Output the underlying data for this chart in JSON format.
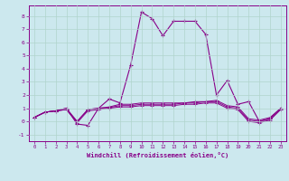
{
  "xlabel": "Windchill (Refroidissement éolien,°C)",
  "background_color": "#cce8ee",
  "grid_color": "#b0d4cc",
  "line_color": "#880088",
  "xlim": [
    -0.5,
    23.5
  ],
  "ylim": [
    -1.5,
    8.8
  ],
  "xticks": [
    0,
    1,
    2,
    3,
    4,
    5,
    6,
    7,
    8,
    9,
    10,
    11,
    12,
    13,
    14,
    15,
    16,
    17,
    18,
    19,
    20,
    21,
    22,
    23
  ],
  "yticks": [
    -1,
    0,
    1,
    2,
    3,
    4,
    5,
    6,
    7,
    8
  ],
  "series": [
    [
      0.3,
      0.7,
      0.8,
      1.0,
      -0.2,
      -0.3,
      1.0,
      1.7,
      1.4,
      4.3,
      8.3,
      7.8,
      6.5,
      7.6,
      7.6,
      7.6,
      6.6,
      2.0,
      3.1,
      1.3,
      1.5,
      0.0,
      0.2,
      1.0
    ],
    [
      0.3,
      0.7,
      0.8,
      1.0,
      0.0,
      0.9,
      1.0,
      1.1,
      1.3,
      1.3,
      1.4,
      1.4,
      1.4,
      1.4,
      1.4,
      1.5,
      1.5,
      1.6,
      1.2,
      1.1,
      0.2,
      0.1,
      0.3,
      1.0
    ],
    [
      0.3,
      0.7,
      0.8,
      0.9,
      0.0,
      0.9,
      1.0,
      1.05,
      1.2,
      1.2,
      1.3,
      1.3,
      1.3,
      1.3,
      1.4,
      1.4,
      1.5,
      1.5,
      1.1,
      1.0,
      0.1,
      0.0,
      0.2,
      1.0
    ],
    [
      0.3,
      0.7,
      0.8,
      0.9,
      -0.1,
      0.8,
      0.9,
      1.0,
      1.1,
      1.1,
      1.2,
      1.2,
      1.2,
      1.2,
      1.3,
      1.3,
      1.4,
      1.4,
      1.0,
      0.9,
      0.0,
      -0.1,
      0.1,
      0.9
    ]
  ]
}
